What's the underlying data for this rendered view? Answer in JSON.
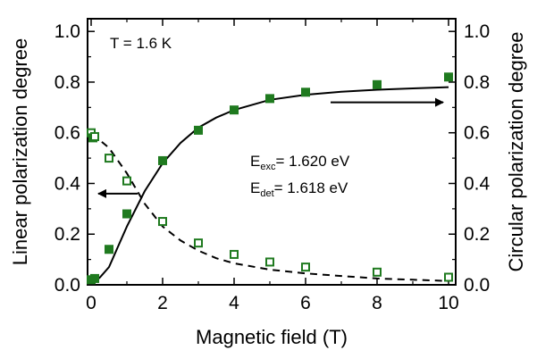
{
  "chart_data": {
    "type": "scatter",
    "xlabel": "Magnetic field (T)",
    "ylabel_left": "Linear polarization degree",
    "ylabel_right": "Circular polarization degree",
    "xlim": [
      -0.1,
      10.2
    ],
    "ylim": [
      0,
      1.05
    ],
    "x_ticks": [
      "0",
      "2",
      "4",
      "6",
      "8",
      "10"
    ],
    "y_ticks": [
      "0.0",
      "0.2",
      "0.4",
      "0.6",
      "0.8",
      "1.0"
    ],
    "annotations": {
      "temperature": "T = 1.6 K",
      "e_exc_main": "E",
      "e_exc_sub": "exc",
      "e_exc_value": "= 1.620 eV",
      "e_det_main": "E",
      "e_det_sub": "det",
      "e_det_value": "= 1.618 eV"
    },
    "series": [
      {
        "marker": "filled-square",
        "axis": "right",
        "color": "#1f7a1f",
        "x": [
          0,
          0.1,
          0.5,
          1,
          2,
          3,
          4,
          5,
          6,
          8,
          10
        ],
        "y": [
          0.02,
          0.025,
          0.14,
          0.28,
          0.49,
          0.61,
          0.69,
          0.735,
          0.76,
          0.79,
          0.82
        ]
      },
      {
        "marker": "open-square",
        "axis": "left",
        "color": "#1f7a1f",
        "x": [
          0,
          0.05,
          0.1,
          0.5,
          1,
          2,
          3,
          4,
          5,
          6,
          8,
          10
        ],
        "y": [
          0.6,
          0.58,
          0.585,
          0.5,
          0.41,
          0.25,
          0.165,
          0.12,
          0.09,
          0.07,
          0.05,
          0.03
        ]
      },
      {
        "line": "solid",
        "axis": "right",
        "color": "#000000",
        "x": [
          0,
          0.25,
          0.5,
          0.75,
          1,
          1.5,
          2,
          2.5,
          3,
          3.5,
          4,
          5,
          6,
          7,
          8,
          9,
          10
        ],
        "y": [
          0.0,
          0.03,
          0.07,
          0.15,
          0.23,
          0.37,
          0.48,
          0.56,
          0.62,
          0.66,
          0.69,
          0.73,
          0.75,
          0.762,
          0.77,
          0.775,
          0.78
        ]
      },
      {
        "line": "dashed",
        "axis": "left",
        "color": "#000000",
        "x": [
          0,
          0.25,
          0.5,
          0.75,
          1,
          1.5,
          2,
          2.5,
          3,
          3.5,
          4,
          5,
          6,
          7,
          8,
          9,
          10
        ],
        "y": [
          0.59,
          0.57,
          0.54,
          0.49,
          0.44,
          0.32,
          0.23,
          0.175,
          0.135,
          0.105,
          0.085,
          0.06,
          0.045,
          0.035,
          0.025,
          0.02,
          0.015
        ]
      }
    ],
    "arrows": [
      {
        "direction": "left",
        "x_from": 1.3,
        "x_to": 0.2,
        "y": 0.36
      },
      {
        "direction": "right",
        "x_from": 6.7,
        "x_to": 9.85,
        "y": 0.72
      }
    ]
  }
}
